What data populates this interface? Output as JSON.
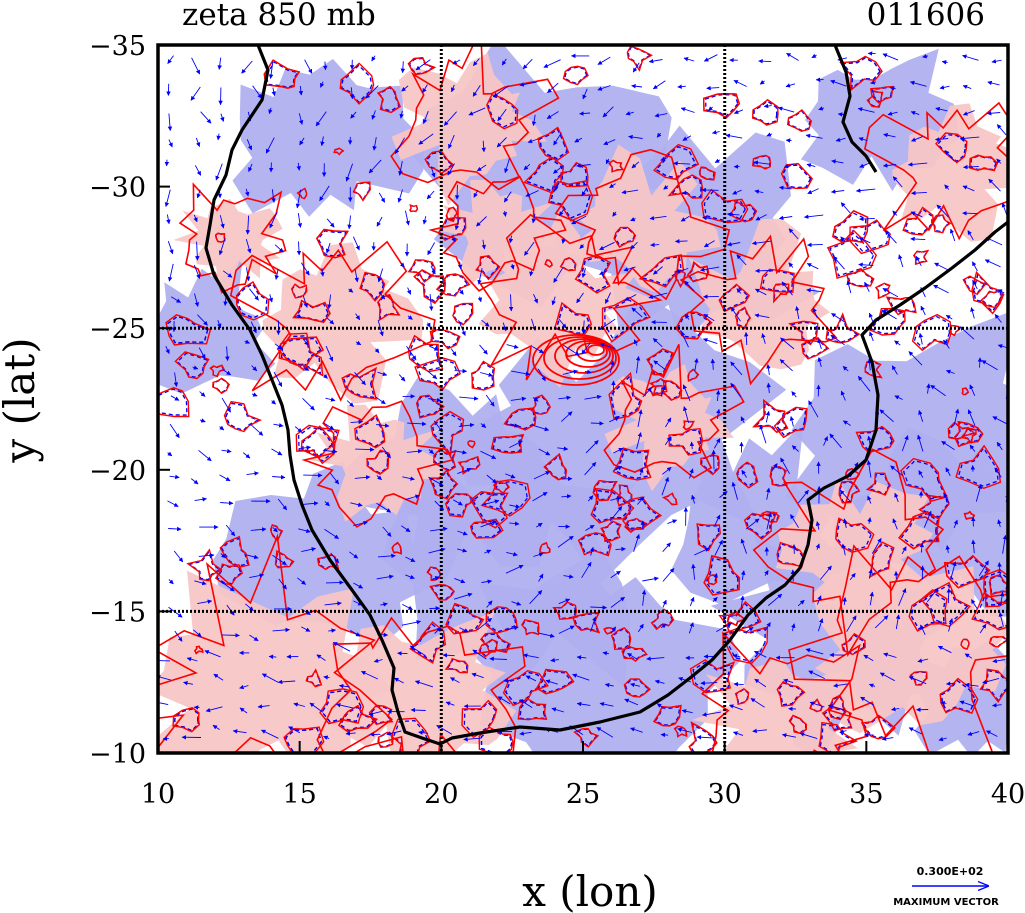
{
  "chart_data": {
    "type": "contour-map",
    "title_left": "zeta 850 mb",
    "title_right": "011606",
    "xlabel": "x (lon)",
    "ylabel": "y (lat)",
    "xlim": [
      10,
      40
    ],
    "ylim": [
      -35,
      -10
    ],
    "x_ticks": [
      10,
      15,
      20,
      25,
      30,
      35,
      40
    ],
    "y_ticks": [
      -35,
      -30,
      -25,
      -20,
      -15,
      -10
    ],
    "x_tick_labels": [
      "10",
      "15",
      "20",
      "25",
      "30",
      "35",
      "40"
    ],
    "y_tick_labels": [
      "−35",
      "−30",
      "−25",
      "−20",
      "−15",
      "−10"
    ],
    "grid_lines_x": [
      20,
      30
    ],
    "grid_lines_y": [
      -25,
      -15
    ],
    "colors": {
      "positive_contour": "#ff0000",
      "positive_fill": "#f7c6c6",
      "negative_contour": "#0000ff",
      "negative_fill": "#b0b0f0",
      "coastline": "#000000",
      "vectors": "#0000ff"
    },
    "reference_vector": {
      "value_label": "0.300E+02",
      "caption": "MAXIMUM VECTOR"
    }
  }
}
